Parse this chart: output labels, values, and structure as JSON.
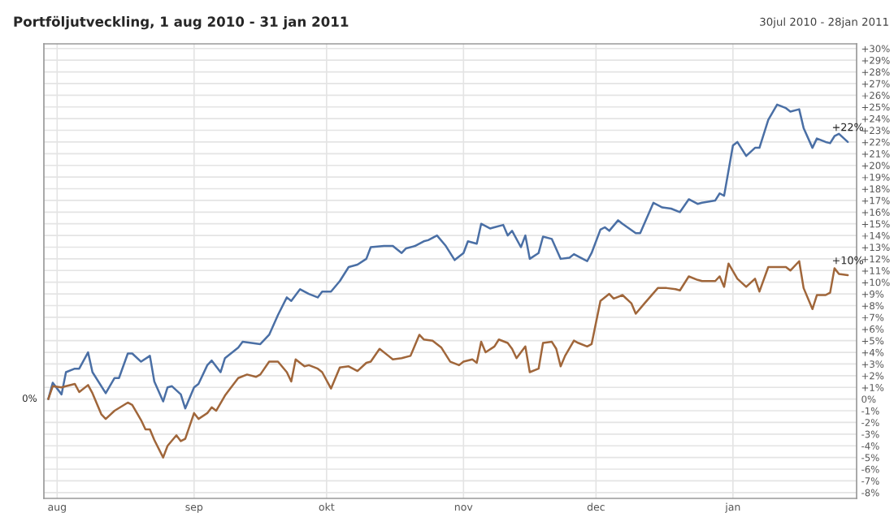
{
  "chart_data": {
    "type": "line",
    "title": "Portföljutveckling, 1 aug 2010 - 31 jan 2011",
    "subtitle": "30jul 2010 - 28jan 2011",
    "series": [
      {
        "color": "#4a6fa5",
        "x": [
          "2010-07-30",
          "2010-07-31",
          "2010-08-02",
          "2010-08-03",
          "2010-08-05",
          "2010-08-06",
          "2010-08-08",
          "2010-08-09",
          "2010-08-12",
          "2010-08-14",
          "2010-08-15",
          "2010-08-17",
          "2010-08-18",
          "2010-08-20",
          "2010-08-22",
          "2010-08-23",
          "2010-08-25",
          "2010-08-26",
          "2010-08-27",
          "2010-08-29",
          "2010-08-30",
          "2010-09-01",
          "2010-09-02",
          "2010-09-04",
          "2010-09-05",
          "2010-09-07",
          "2010-09-08",
          "2010-09-11",
          "2010-09-12",
          "2010-09-14",
          "2010-09-16",
          "2010-09-18",
          "2010-09-20",
          "2010-09-22",
          "2010-09-23",
          "2010-09-25",
          "2010-09-27",
          "2010-09-29",
          "2010-09-30",
          "2010-10-02",
          "2010-10-04",
          "2010-10-06",
          "2010-10-08",
          "2010-10-10",
          "2010-10-11",
          "2010-10-14",
          "2010-10-16",
          "2010-10-18",
          "2010-10-19",
          "2010-10-21",
          "2010-10-23",
          "2010-10-24",
          "2010-10-26",
          "2010-10-28",
          "2010-10-30",
          "2010-11-01",
          "2010-11-02",
          "2010-11-04",
          "2010-11-05",
          "2010-11-07",
          "2010-11-08",
          "2010-11-10",
          "2010-11-11",
          "2010-11-12",
          "2010-11-14",
          "2010-11-15",
          "2010-11-16",
          "2010-11-18",
          "2010-11-19",
          "2010-11-21",
          "2010-11-23",
          "2010-11-25",
          "2010-11-26",
          "2010-11-28",
          "2010-11-29",
          "2010-11-30",
          "2010-12-02",
          "2010-12-03",
          "2010-12-04",
          "2010-12-06",
          "2010-12-07",
          "2010-12-10",
          "2010-12-11",
          "2010-12-14",
          "2010-12-16",
          "2010-12-18",
          "2010-12-20",
          "2010-12-22",
          "2010-12-24",
          "2010-12-25",
          "2010-12-28",
          "2010-12-29",
          "2010-12-30",
          "2011-01-01",
          "2011-01-02",
          "2011-01-04",
          "2011-01-06",
          "2011-01-07",
          "2011-01-09",
          "2011-01-11",
          "2011-01-13",
          "2011-01-14",
          "2011-01-16",
          "2011-01-17",
          "2011-01-19",
          "2011-01-20",
          "2011-01-22",
          "2011-01-23",
          "2011-01-24",
          "2011-01-25",
          "2011-01-27"
        ],
        "values": [
          0,
          1.4,
          0.4,
          2.3,
          2.6,
          2.6,
          4.0,
          2.3,
          0.5,
          1.8,
          1.8,
          3.9,
          3.9,
          3.2,
          3.7,
          1.5,
          -0.2,
          1.0,
          1.1,
          0.4,
          -0.8,
          1.0,
          1.3,
          2.9,
          3.3,
          2.3,
          3.5,
          4.4,
          4.9,
          4.8,
          4.7,
          5.5,
          7.2,
          8.7,
          8.4,
          9.4,
          9.0,
          8.7,
          9.2,
          9.2,
          10.1,
          11.3,
          11.5,
          12.0,
          13.0,
          13.1,
          13.1,
          12.5,
          12.9,
          13.1,
          13.5,
          13.6,
          14.0,
          13.1,
          11.9,
          12.5,
          13.5,
          13.3,
          15.0,
          14.6,
          14.7,
          14.9,
          14.0,
          14.4,
          13.0,
          14.0,
          12.0,
          12.5,
          13.9,
          13.7,
          12.0,
          12.1,
          12.4,
          12.0,
          11.8,
          12.5,
          14.5,
          14.7,
          14.4,
          15.3,
          15.0,
          14.2,
          14.2,
          16.8,
          16.4,
          16.3,
          16.0,
          17.1,
          16.7,
          16.8,
          17.0,
          17.6,
          17.4,
          21.7,
          22.0,
          20.8,
          21.5,
          21.5,
          23.9,
          25.2,
          24.9,
          24.6,
          24.8,
          23.2,
          21.5,
          22.3,
          22.0,
          21.9,
          22.5,
          22.7,
          22.0
        ]
      },
      {
        "color": "#a0663a",
        "x": [
          "2010-07-30",
          "2010-07-31",
          "2010-08-02",
          "2010-08-03",
          "2010-08-05",
          "2010-08-06",
          "2010-08-08",
          "2010-08-09",
          "2010-08-11",
          "2010-08-12",
          "2010-08-14",
          "2010-08-17",
          "2010-08-18",
          "2010-08-20",
          "2010-08-21",
          "2010-08-22",
          "2010-08-23",
          "2010-08-25",
          "2010-08-26",
          "2010-08-28",
          "2010-08-29",
          "2010-08-30",
          "2010-09-01",
          "2010-09-02",
          "2010-09-04",
          "2010-09-05",
          "2010-09-06",
          "2010-09-08",
          "2010-09-09",
          "2010-09-11",
          "2010-09-13",
          "2010-09-15",
          "2010-09-16",
          "2010-09-18",
          "2010-09-20",
          "2010-09-22",
          "2010-09-23",
          "2010-09-24",
          "2010-09-26",
          "2010-09-27",
          "2010-09-29",
          "2010-09-30",
          "2010-10-02",
          "2010-10-04",
          "2010-10-06",
          "2010-10-08",
          "2010-10-10",
          "2010-10-11",
          "2010-10-13",
          "2010-10-15",
          "2010-10-16",
          "2010-10-18",
          "2010-10-20",
          "2010-10-22",
          "2010-10-23",
          "2010-10-25",
          "2010-10-27",
          "2010-10-29",
          "2010-10-31",
          "2010-11-01",
          "2010-11-03",
          "2010-11-04",
          "2010-11-05",
          "2010-11-06",
          "2010-11-08",
          "2010-11-09",
          "2010-11-11",
          "2010-11-12",
          "2010-11-13",
          "2010-11-15",
          "2010-11-16",
          "2010-11-18",
          "2010-11-19",
          "2010-11-21",
          "2010-11-22",
          "2010-11-23",
          "2010-11-24",
          "2010-11-26",
          "2010-11-27",
          "2010-11-29",
          "2010-11-30",
          "2010-12-02",
          "2010-12-04",
          "2010-12-05",
          "2010-12-07",
          "2010-12-09",
          "2010-12-10",
          "2010-12-12",
          "2010-12-15",
          "2010-12-17",
          "2010-12-19",
          "2010-12-20",
          "2010-12-22",
          "2010-12-24",
          "2010-12-25",
          "2010-12-28",
          "2010-12-29",
          "2010-12-30",
          "2010-12-31",
          "2011-01-02",
          "2011-01-04",
          "2011-01-06",
          "2011-01-07",
          "2011-01-09",
          "2011-01-11",
          "2011-01-13",
          "2011-01-14",
          "2011-01-16",
          "2011-01-17",
          "2011-01-19",
          "2011-01-20",
          "2011-01-22",
          "2011-01-23",
          "2011-01-24",
          "2011-01-25",
          "2011-01-27"
        ],
        "values": [
          0,
          1.1,
          1.0,
          1.1,
          1.3,
          0.6,
          1.2,
          0.5,
          -1.3,
          -1.7,
          -1.0,
          -0.3,
          -0.5,
          -1.8,
          -2.6,
          -2.6,
          -3.5,
          -5.0,
          -4.0,
          -3.1,
          -3.6,
          -3.4,
          -1.2,
          -1.7,
          -1.2,
          -0.7,
          -1.0,
          0.3,
          0.8,
          1.8,
          2.1,
          1.9,
          2.1,
          3.2,
          3.2,
          2.3,
          1.5,
          3.4,
          2.8,
          2.9,
          2.6,
          2.3,
          0.9,
          2.7,
          2.8,
          2.4,
          3.1,
          3.2,
          4.3,
          3.7,
          3.4,
          3.5,
          3.7,
          5.5,
          5.1,
          5.0,
          4.4,
          3.2,
          2.9,
          3.2,
          3.4,
          3.1,
          4.9,
          4.0,
          4.5,
          5.1,
          4.8,
          4.3,
          3.5,
          4.5,
          2.3,
          2.6,
          4.8,
          4.9,
          4.3,
          2.8,
          3.7,
          5.0,
          4.8,
          4.5,
          4.7,
          8.4,
          9.0,
          8.6,
          8.9,
          8.2,
          7.3,
          8.2,
          9.5,
          9.5,
          9.4,
          9.3,
          10.5,
          10.2,
          10.1,
          10.1,
          10.5,
          9.6,
          11.6,
          10.3,
          9.6,
          10.3,
          9.2,
          11.3,
          11.3,
          11.3,
          11.0,
          11.8,
          9.5,
          7.7,
          8.9,
          8.9,
          9.1,
          11.2,
          10.7,
          10.6
        ]
      }
    ],
    "xlim": [
      "2010-07-29",
      "2011-01-29"
    ],
    "xticks": [
      {
        "value": "2010-08-01",
        "label": "aug"
      },
      {
        "value": "2010-09-01",
        "label": "sep"
      },
      {
        "value": "2010-10-01",
        "label": "okt"
      },
      {
        "value": "2010-11-01",
        "label": "nov"
      },
      {
        "value": "2010-12-01",
        "label": "dec"
      },
      {
        "value": "2011-01-01",
        "label": "jan"
      }
    ],
    "ylim": [
      -8.5,
      30.4
    ],
    "yticks": [
      {
        "value": -8,
        "label": "-8%"
      },
      {
        "value": -7,
        "label": "-7%"
      },
      {
        "value": -6,
        "label": "-6%"
      },
      {
        "value": -5,
        "label": "-5%"
      },
      {
        "value": -4,
        "label": "-4%"
      },
      {
        "value": -3,
        "label": "-3%"
      },
      {
        "value": -2,
        "label": "-2%"
      },
      {
        "value": -1,
        "label": "-1%"
      },
      {
        "value": 0,
        "label": "0%"
      },
      {
        "value": 1,
        "label": "+1%"
      },
      {
        "value": 2,
        "label": "+2%"
      },
      {
        "value": 3,
        "label": "+3%"
      },
      {
        "value": 4,
        "label": "+4%"
      },
      {
        "value": 5,
        "label": "+5%"
      },
      {
        "value": 6,
        "label": "+6%"
      },
      {
        "value": 7,
        "label": "+7%"
      },
      {
        "value": 8,
        "label": "+8%"
      },
      {
        "value": 9,
        "label": "+9%"
      },
      {
        "value": 10,
        "label": "+10%"
      },
      {
        "value": 11,
        "label": "+11%"
      },
      {
        "value": 12,
        "label": "+12%"
      },
      {
        "value": 13,
        "label": "+13%"
      },
      {
        "value": 14,
        "label": "+14%"
      },
      {
        "value": 15,
        "label": "+15%"
      },
      {
        "value": 16,
        "label": "+16%"
      },
      {
        "value": 17,
        "label": "+17%"
      },
      {
        "value": 18,
        "label": "+18%"
      },
      {
        "value": 19,
        "label": "+19%"
      },
      {
        "value": 20,
        "label": "+20%"
      },
      {
        "value": 21,
        "label": "+21%"
      },
      {
        "value": 22,
        "label": "+22%"
      },
      {
        "value": 23,
        "label": "+23%"
      },
      {
        "value": 24,
        "label": "+24%"
      },
      {
        "value": 25,
        "label": "+25%"
      },
      {
        "value": 26,
        "label": "+26%"
      },
      {
        "value": 27,
        "label": "+27%"
      },
      {
        "value": 28,
        "label": "+28%"
      },
      {
        "value": 29,
        "label": "+29%"
      },
      {
        "value": 30,
        "label": "+30%"
      }
    ],
    "annotations": [
      {
        "text": "0%",
        "x": "2010-07-30",
        "y": 0
      },
      {
        "text": "+22%",
        "x": "2011-01-27",
        "y": 22.0
      },
      {
        "text": "+10%",
        "x": "2011-01-27",
        "y": 10.6
      }
    ],
    "grid": true,
    "marker": "none",
    "line_style": "solid"
  }
}
